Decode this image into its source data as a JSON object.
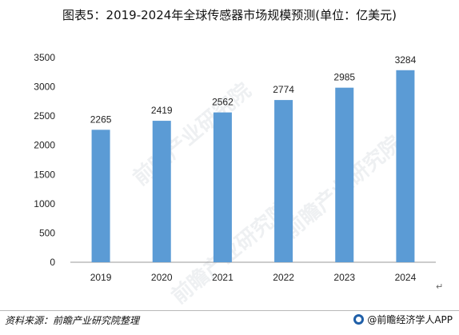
{
  "title": "图表5：2019-2024年全球传感器市场规模预测(单位：亿美元)",
  "watermarks": [
    "前瞻产业研究院",
    "前瞻产业研究院",
    "前瞻产业研究院"
  ],
  "source": "资料来源：前瞻产业研究院整理",
  "brand": "@前瞻经济学人APP",
  "colors": {
    "bar": "#5b9bd5",
    "axis": "#999999"
  },
  "chart_data": {
    "type": "bar",
    "title": "图表5：2019-2024年全球传感器市场规模预测(单位：亿美元)",
    "xlabel": "",
    "ylabel": "",
    "categories": [
      "2019",
      "2020",
      "2021",
      "2022",
      "2023",
      "2024"
    ],
    "series": [
      {
        "values": [
          2265,
          2419,
          2562,
          2774,
          2985,
          3284
        ]
      }
    ],
    "ylim": [
      0,
      3500
    ],
    "yticks": [
      0,
      500,
      1000,
      1500,
      2000,
      2500,
      3000,
      3500
    ],
    "grid": false,
    "legend": "none"
  }
}
